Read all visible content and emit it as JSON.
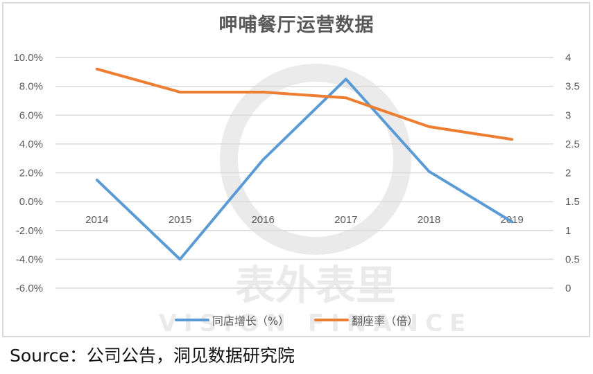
{
  "title": "呷哺餐厅运营数据",
  "source": "Source：公司公告，洞见数据研究院",
  "watermark": {
    "cn": "表外表里",
    "en": "VISION FINANCE"
  },
  "colors": {
    "series1": "#5b9bd5",
    "series2": "#ed7d31",
    "grid": "#d9d9d9",
    "axis_text": "#595959"
  },
  "legend": [
    {
      "label": "同店增长（%）",
      "color": "#5b9bd5"
    },
    {
      "label": "翻座率（倍）",
      "color": "#ed7d31"
    }
  ],
  "chart_data": {
    "type": "line",
    "title": "呷哺餐厅运营数据",
    "categories": [
      "2014",
      "2015",
      "2016",
      "2017",
      "2018",
      "2019"
    ],
    "series": [
      {
        "name": "同店增长（%）",
        "axis": "left",
        "values": [
          1.5,
          -4.0,
          2.9,
          8.5,
          2.1,
          -1.4
        ],
        "unit": "%"
      },
      {
        "name": "翻座率（倍）",
        "axis": "right",
        "values": [
          3.8,
          3.4,
          3.4,
          3.3,
          2.8,
          2.58
        ]
      }
    ],
    "y_left": {
      "ticks": [
        "10.0%",
        "8.0%",
        "6.0%",
        "4.0%",
        "2.0%",
        "0.0%",
        "-2.0%",
        "-4.0%",
        "-6.0%"
      ],
      "ylim": [
        -6,
        10
      ]
    },
    "y_right": {
      "ticks": [
        "4",
        "3.5",
        "3",
        "2.5",
        "2",
        "1.5",
        "1",
        "0.5",
        "0"
      ],
      "ylim": [
        0,
        4
      ]
    },
    "xlabel": "",
    "ylabel": "",
    "grid": true,
    "legend_position": "bottom"
  }
}
